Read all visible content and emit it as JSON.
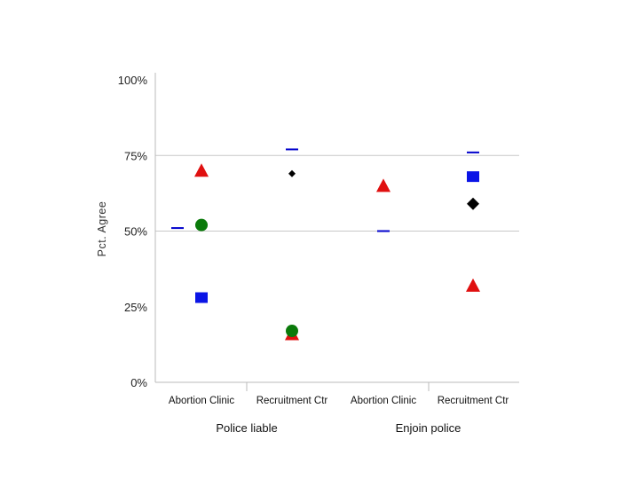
{
  "chart_data": {
    "type": "scatter",
    "title": "",
    "ylabel": "Pct. Agree",
    "ylim": [
      0,
      100
    ],
    "yticks": [
      0,
      25,
      50,
      75,
      100
    ],
    "ytick_labels": [
      "0%",
      "25%",
      "50%",
      "75%",
      "100%"
    ],
    "gridlines": [
      50,
      75
    ],
    "categories": [
      "Abortion Clinic",
      "Recruitment Ctr",
      "Abortion Clinic",
      "Recruitment Ctr"
    ],
    "groups": [
      {
        "label": "Police liable",
        "categories": [
          0,
          1
        ]
      },
      {
        "label": "Enjoin police",
        "categories": [
          2,
          3
        ]
      }
    ],
    "series": [
      {
        "name": "blue-dash",
        "marker": "dash",
        "color": "#0000cc",
        "values": [
          51,
          77,
          50,
          76
        ],
        "offset": -1
      },
      {
        "name": "red-triangle",
        "marker": "triangle",
        "color": "#e01010",
        "values": [
          70,
          16,
          65,
          32
        ],
        "offset": 0
      },
      {
        "name": "green-circle",
        "marker": "circle",
        "color": "#0a7a0a",
        "values": [
          52,
          17,
          null,
          null
        ],
        "offset": 0
      },
      {
        "name": "blue-square",
        "marker": "square",
        "color": "#0a14e6",
        "values": [
          28,
          null,
          null,
          68
        ],
        "offset": 0
      },
      {
        "name": "black-diamond",
        "marker": "diamond",
        "color": "#000000",
        "values": [
          null,
          69,
          null,
          59
        ],
        "offset": 0
      }
    ]
  }
}
